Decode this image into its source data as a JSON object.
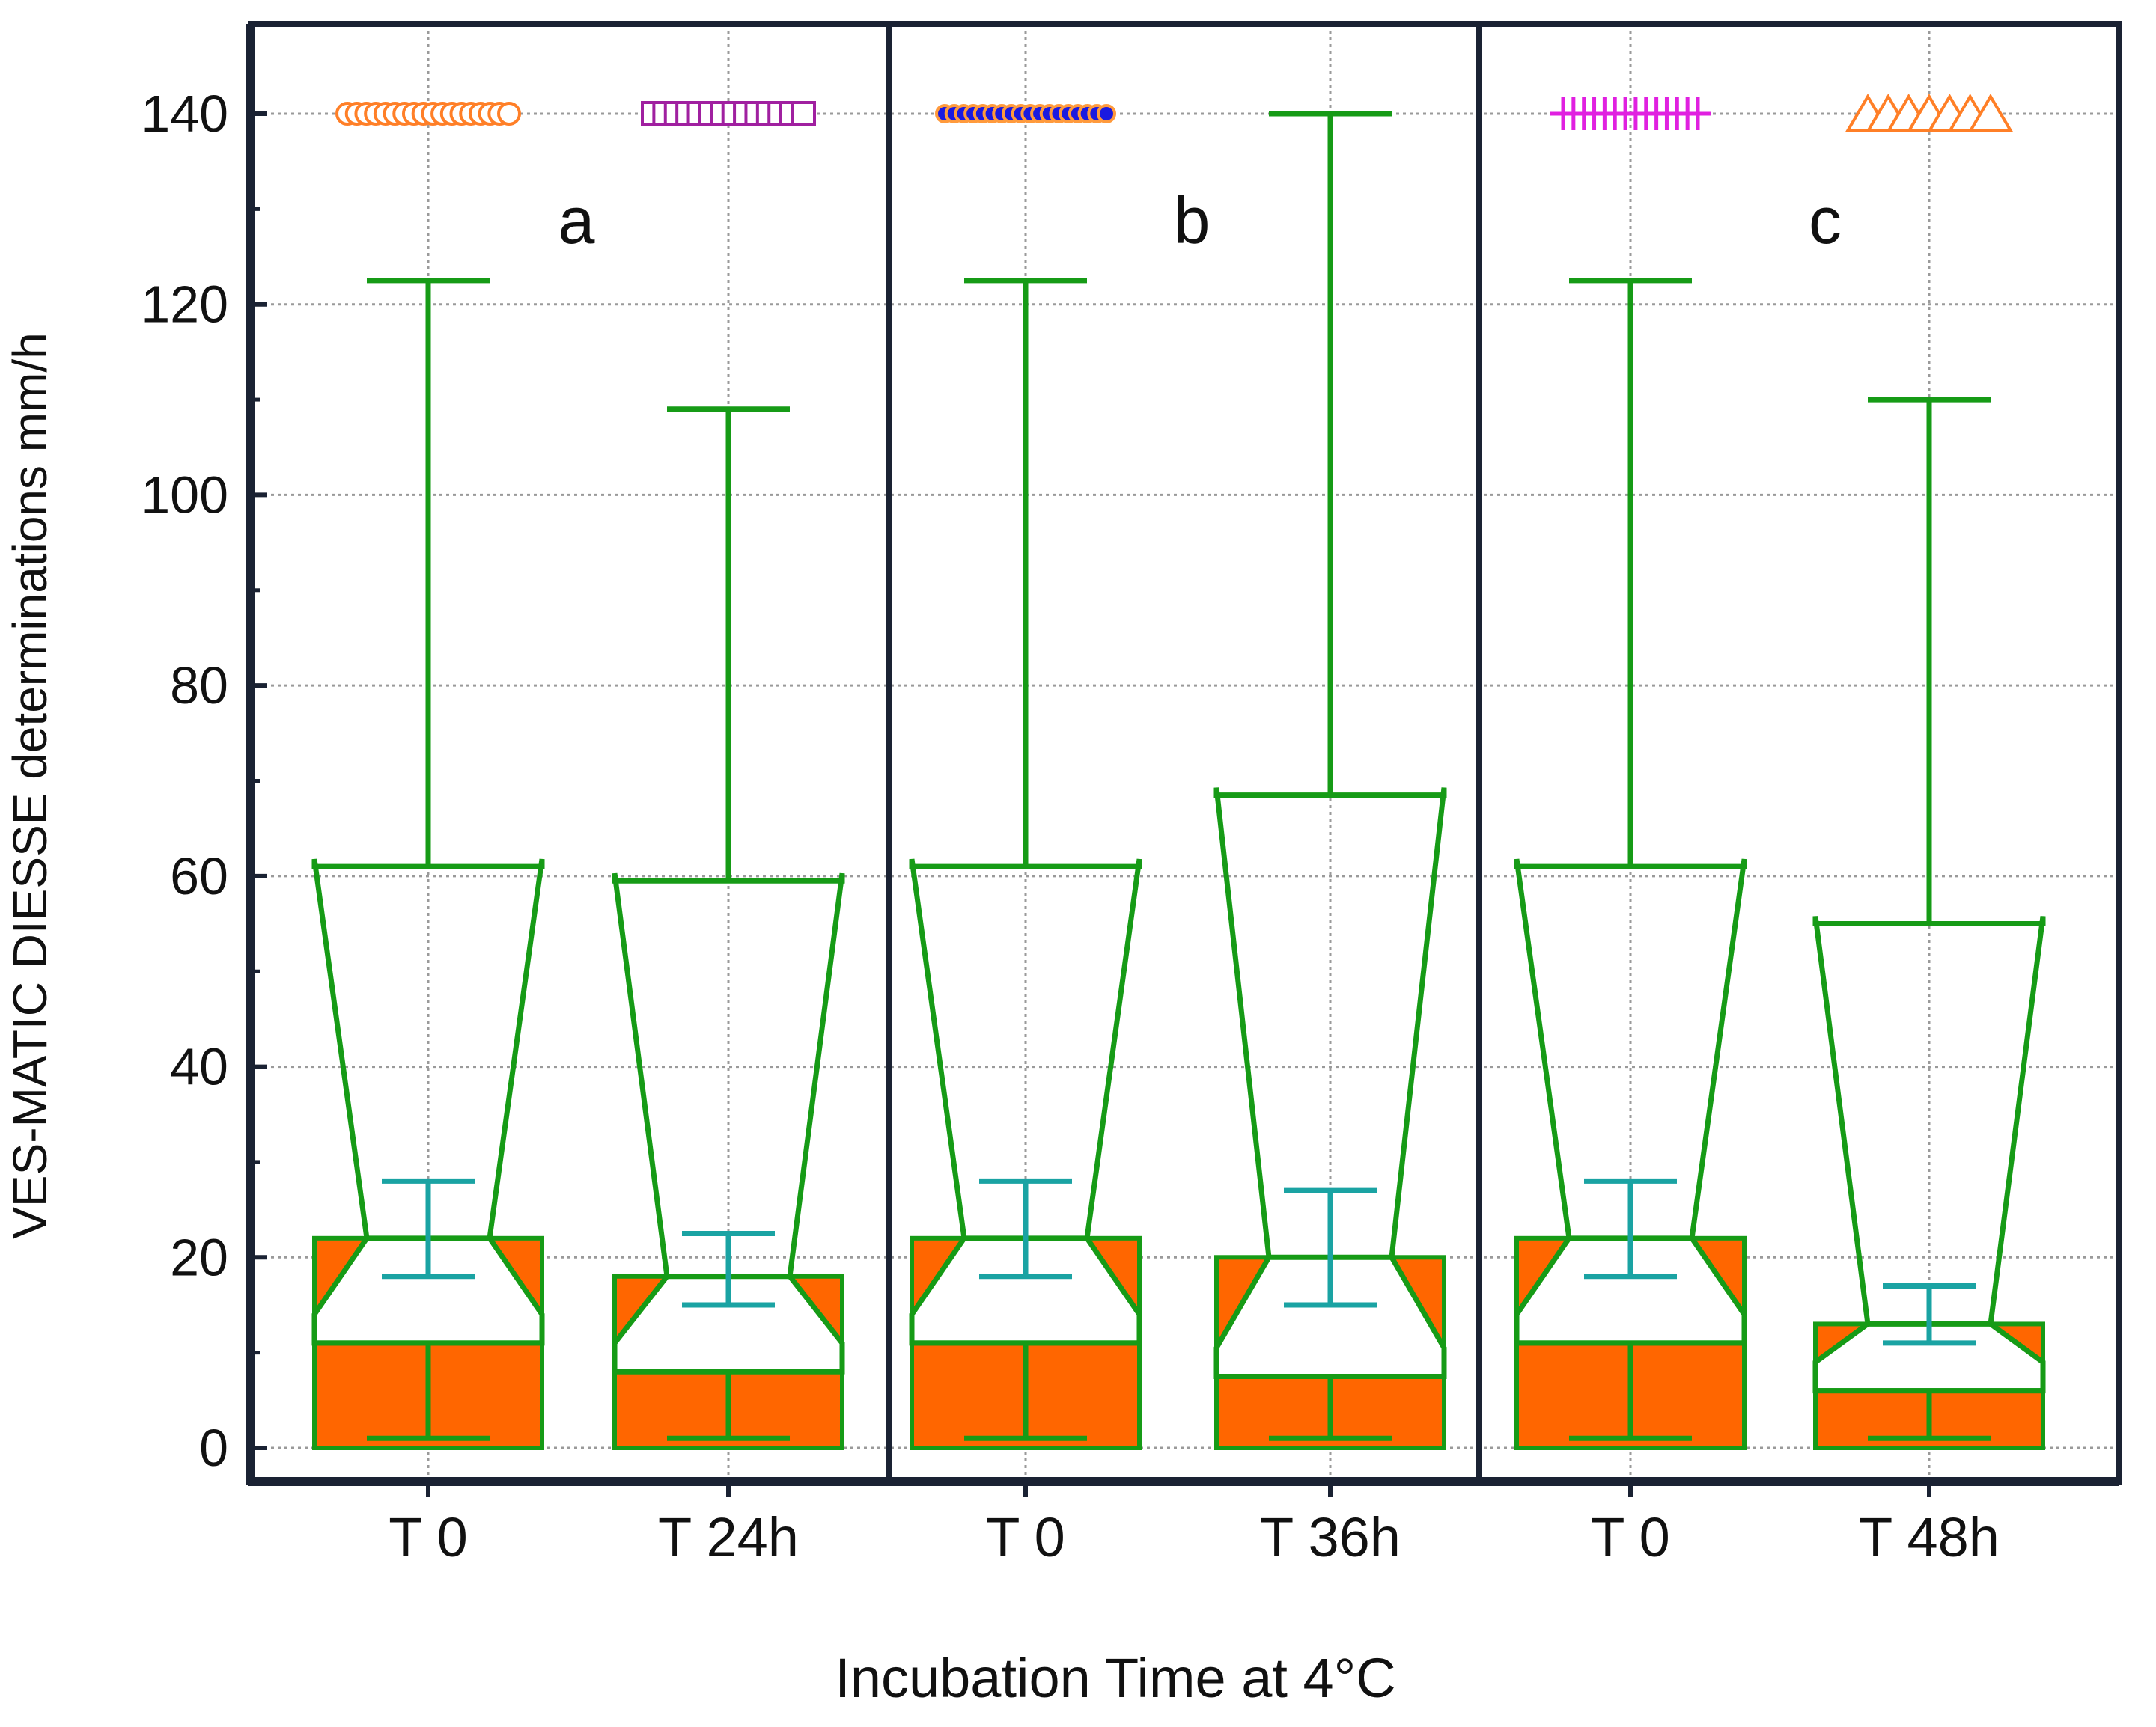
{
  "chart_data": {
    "type": "box",
    "ylabel": "VES-MATIC DIESSE  determinations mm/h",
    "xlabel": "Incubation Time at 4°C",
    "ylim": [
      -4,
      148
    ],
    "yticks": [
      0,
      20,
      40,
      60,
      80,
      100,
      120,
      140
    ],
    "grid": true,
    "panels": [
      {
        "label": "a",
        "start": 0,
        "end": 2
      },
      {
        "label": "b",
        "start": 2,
        "end": 4
      },
      {
        "label": "c",
        "start": 4,
        "end": 6
      }
    ],
    "groups": [
      {
        "category": "T 0",
        "panel": "a",
        "q1": 11,
        "median": 22,
        "q3": 61,
        "whisker_low": 1,
        "whisker_high": 122.5,
        "notch_low": 18,
        "notch_high": 28,
        "outlier_value": 140,
        "outlier_marker": "circle",
        "outlier_color": "#ff7f27"
      },
      {
        "category": "T 24h",
        "panel": "a",
        "q1": 8,
        "median": 18,
        "q3": 59.5,
        "whisker_low": 1,
        "whisker_high": 109,
        "notch_low": 15,
        "notch_high": 22.5,
        "outlier_value": 140,
        "outlier_marker": "square",
        "outlier_color": "#a020a0"
      },
      {
        "category": "T 0",
        "panel": "b",
        "q1": 11,
        "median": 22,
        "q3": 61,
        "whisker_low": 1,
        "whisker_high": 122.5,
        "notch_low": 18,
        "notch_high": 28,
        "outlier_value": 140,
        "outlier_marker": "filled-circle",
        "outlier_color": "#1a1ae0"
      },
      {
        "category": "T 36h",
        "panel": "b",
        "q1": 7.5,
        "median": 20,
        "q3": 68.5,
        "whisker_low": 1,
        "whisker_high": 140,
        "notch_low": 15,
        "notch_high": 27,
        "outlier_value": null,
        "outlier_marker": "none",
        "outlier_color": "#000000"
      },
      {
        "category": "T 0",
        "panel": "c",
        "q1": 11,
        "median": 22,
        "q3": 61,
        "whisker_low": 1,
        "whisker_high": 122.5,
        "notch_low": 18,
        "notch_high": 28,
        "outlier_value": 140,
        "outlier_marker": "plus",
        "outlier_color": "#e020e0"
      },
      {
        "category": "T 48h",
        "panel": "c",
        "q1": 6,
        "median": 13,
        "q3": 55,
        "whisker_low": 1,
        "whisker_high": 110,
        "notch_low": 11,
        "notch_high": 17,
        "outlier_value": 140,
        "outlier_marker": "triangle",
        "outlier_color": "#ff7f27"
      }
    ],
    "colors": {
      "box_stroke": "#169b16",
      "lower_fill": "#ff6600",
      "notch_bar": "#1aa3a3",
      "grid": "#9a9a9a",
      "frame": "#1a2233"
    }
  }
}
